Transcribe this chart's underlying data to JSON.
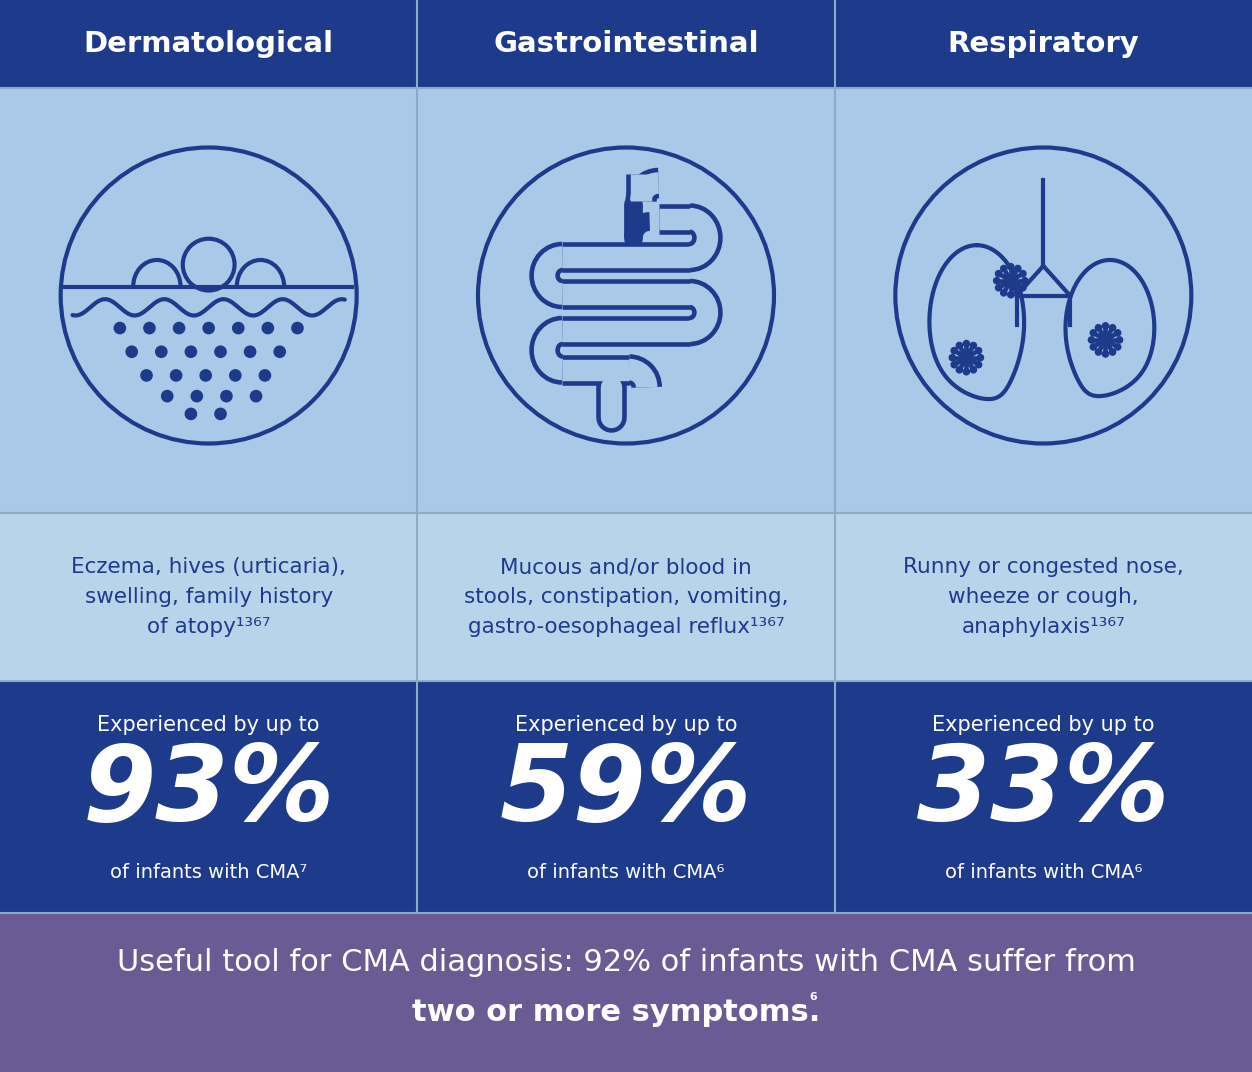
{
  "header_bg": "#1e3a8a",
  "light_bg": "#aac9e8",
  "desc_bg": "#b8d4ea",
  "dark_bg": "#1e3a8a",
  "footer_bg": "#6b5b95",
  "icon_color": "#1e3a8a",
  "header_text_color": "#ffffff",
  "light_text_color": "#1e3a8a",
  "dark_text_color": "#ffffff",
  "footer_text_color": "#ffffff",
  "separator_color": "#8aacc8",
  "col_headers": [
    "Dermatological",
    "Gastrointestinal",
    "Respiratory"
  ],
  "descriptions": [
    "Eczema, hives (urticaria),\nswelling, family history\nof atopy¹³⁶⁷",
    "Mucous and/or blood in\nstools, constipation, vomiting,\ngastro-oesophageal reflux¹³⁶⁷",
    "Runny or congested nose,\nwheeze or cough,\nanaphylaxis¹³⁶⁷"
  ],
  "percentages": [
    "93%",
    "59%",
    "33%"
  ],
  "pct_labels": [
    "Experienced by up to",
    "Experienced by up to",
    "Experienced by up to"
  ],
  "pct_sublabels": [
    "of infants with CMA⁷",
    "of infants with CMA⁶",
    "of infants with CMA⁶"
  ],
  "footer_line1": "Useful tool for CMA diagnosis: 92% of infants with CMA suffer from",
  "footer_line2_normal": "two or more symptoms.",
  "footer_line2_super": "⁶"
}
